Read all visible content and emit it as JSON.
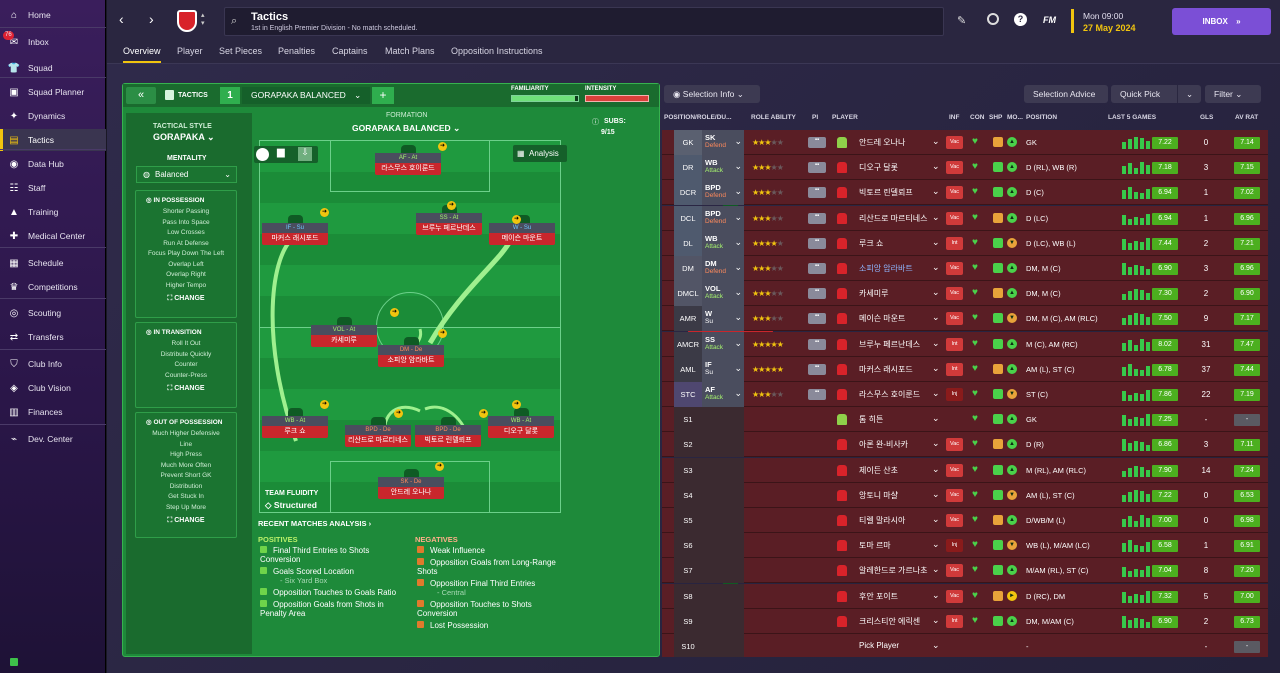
{
  "sidebar": {
    "items": [
      {
        "label": "Home",
        "icon": "home-icon",
        "glyph": "⌂"
      },
      {
        "label": "Inbox",
        "icon": "inbox-icon",
        "glyph": "✉",
        "badge": "76"
      },
      {
        "label": "Squad",
        "icon": "shirt-icon",
        "glyph": "👕"
      },
      {
        "label": "Squad Planner",
        "icon": "planner-icon",
        "glyph": "▣"
      },
      {
        "label": "Dynamics",
        "icon": "dynamics-icon",
        "glyph": "✦"
      },
      {
        "label": "Tactics",
        "icon": "tactics-board-icon",
        "glyph": "▤"
      },
      {
        "label": "Data Hub",
        "icon": "data-hub-icon",
        "glyph": "◉"
      },
      {
        "label": "Staff",
        "icon": "staff-icon",
        "glyph": "☷"
      },
      {
        "label": "Training",
        "icon": "training-icon",
        "glyph": "▲"
      },
      {
        "label": "Medical Center",
        "icon": "medical-icon",
        "glyph": "✚"
      },
      {
        "label": "Schedule",
        "icon": "calendar-icon",
        "glyph": "▦"
      },
      {
        "label": "Competitions",
        "icon": "trophy-icon",
        "glyph": "♛"
      },
      {
        "label": "Scouting",
        "icon": "scouting-icon",
        "glyph": "◎"
      },
      {
        "label": "Transfers",
        "icon": "transfers-icon",
        "glyph": "⇄"
      },
      {
        "label": "Club Info",
        "icon": "shield-icon",
        "glyph": "⛉"
      },
      {
        "label": "Club Vision",
        "icon": "vision-icon",
        "glyph": "◈"
      },
      {
        "label": "Finances",
        "icon": "finances-icon",
        "glyph": "▥"
      },
      {
        "label": "Dev. Center",
        "icon": "dev-center-icon",
        "glyph": "⌁"
      }
    ]
  },
  "topbar": {
    "title": "Tactics",
    "subtitle": "1st in English Premier Division - No match scheduled.",
    "fm": "FM",
    "date_day": "Mon 09:00",
    "date": "27 May 2024",
    "inbox": "INBOX"
  },
  "tabs": [
    "Overview",
    "Player",
    "Set Pieces",
    "Penalties",
    "Captains",
    "Match Plans",
    "Opposition Instructions"
  ],
  "tactics": {
    "label": "TACTICS",
    "slot": "1",
    "name": "GORAPAKA BALANCED",
    "familiarity": "FAMILIARITY",
    "intensity": "INTENSITY",
    "style_label": "TACTICAL STYLE",
    "style": "GORAPAKA",
    "mentality_label": "MENTALITY",
    "mentality": "Balanced",
    "formation_label": "FORMATION",
    "formation": "GORAPAKA BALANCED",
    "subs_label": "SUBS:",
    "subs": "9/15",
    "analysis": "Analysis",
    "team_fluidity_label": "TEAM FLUIDITY",
    "team_fluidity": "Structured",
    "recent": "RECENT MATCHES ANALYSIS ›",
    "in_possession": {
      "title": "IN POSSESSION",
      "lines": [
        "Shorter Passing",
        "Pass Into Space",
        "Low Crosses",
        "Run At Defense",
        "Focus Play Down The Left",
        "Overlap Left",
        "Overlap Right",
        "Higher Tempo"
      ]
    },
    "in_transition": {
      "title": "IN TRANSITION",
      "lines": [
        "Roll It Out",
        "Distribute Quickly",
        "Counter",
        "Counter-Press"
      ]
    },
    "out_of_possession": {
      "title": "OUT OF POSSESSION",
      "lines": [
        "Much Higher Defensive",
        "Line",
        "High Press",
        "Much More Often",
        "Prevent Short GK",
        "Distribution",
        "Get Stuck In",
        "Step Up More"
      ]
    },
    "change": "CHANGE"
  },
  "pitch_players": [
    {
      "role": "AF - At",
      "name": "라스무스 호이룬드"
    },
    {
      "role": "IF - Su",
      "name": "마커스 래시포드"
    },
    {
      "role": "SS - At",
      "name": "브루누 페르난데스"
    },
    {
      "role": "W - Su",
      "name": "메이슨 마운트"
    },
    {
      "role": "VOL - At",
      "name": "카세미루"
    },
    {
      "role": "DM - De",
      "name": "소피앙 암라바트"
    },
    {
      "role": "WB - At",
      "name": "루크 쇼"
    },
    {
      "role": "BPD - De",
      "name": "리산드로 마르티네스"
    },
    {
      "role": "BPD - De",
      "name": "빅토르 린델뢰프"
    },
    {
      "role": "WB - At",
      "name": "디오구 달롯"
    },
    {
      "role": "SK - De",
      "name": "안드레 오나나"
    }
  ],
  "subs": [
    {
      "name": "톰 히튼",
      "pos": "GK"
    },
    {
      "name": "아론 완-비사카",
      "pos": "D (R)"
    },
    {
      "name": "제이든 산초",
      "pos": "M (RL), AM (RLC)"
    },
    {
      "name": "앙토니 마샬",
      "pos": "AM (L), ST (C)"
    },
    {
      "name": "티렐 말라시아",
      "pos": "D/WB/M (L)"
    },
    {
      "name": "토마 르마",
      "pos": "WB (L), M/AM (LC)"
    },
    {
      "name": "알레한드로 가르나초",
      "pos": "M/AM (RL), ST (C)"
    },
    {
      "name": "후안 포이트",
      "pos": "D (RC), DM"
    },
    {
      "name": "크리스티안 에릭센",
      "pos": "DM, M/AM (C)"
    },
    {
      "name": "Pick Player",
      "pos": ""
    }
  ],
  "positives_label": "POSITIVES",
  "negatives_label": "NEGATIVES",
  "positives": [
    {
      "t": "Final Third Entries to Shots Conversion",
      "s": ""
    },
    {
      "t": "Goals Scored Location",
      "s": "- Six Yard Box"
    },
    {
      "t": "Opposition Touches to Goals Ratio",
      "s": ""
    },
    {
      "t": "Opposition Goals from Shots in Penalty Area",
      "s": ""
    }
  ],
  "negatives": [
    {
      "t": "Weak Influence",
      "s": ""
    },
    {
      "t": "Opposition Goals from Long-Range Shots",
      "s": ""
    },
    {
      "t": "Opposition Final Third Entries",
      "s": "- Central"
    },
    {
      "t": "Opposition Touches to Shots Conversion",
      "s": ""
    },
    {
      "t": "Lost Possession",
      "s": ""
    }
  ],
  "table": {
    "selection_info": "Selection Info",
    "selection_advice": "Selection Advice",
    "quick_pick": "Quick Pick",
    "filter": "Filter",
    "headers": [
      "POSITION/ROLE/DU...",
      "ROLE ABILITY",
      "PI",
      "PLAYER",
      "INF",
      "CON",
      "SHP",
      "MO...",
      "POSITION",
      "LAST 5 GAMES",
      "GLS",
      "AV RAT"
    ],
    "rows": [
      {
        "pos": "GK",
        "role": "SK",
        "duty": "Defend",
        "stars": 2.5,
        "name": "안드레 오나나",
        "inf": "Vac",
        "position": "GK",
        "last5": "7.22",
        "gls": "0",
        "av": "7.14"
      },
      {
        "pos": "DR",
        "role": "WB",
        "duty": "Attack",
        "stars": 3,
        "name": "디오구 달롯",
        "inf": "Vac",
        "position": "D (RL), WB (R)",
        "last5": "7.18",
        "gls": "3",
        "av": "7.15"
      },
      {
        "pos": "DCR",
        "role": "BPD",
        "duty": "Defend",
        "stars": 2.5,
        "name": "빅토르 린델뢰프",
        "inf": "Vac",
        "position": "D (C)",
        "last5": "6.94",
        "gls": "1",
        "av": "7.02"
      },
      {
        "pos": "DCL",
        "role": "BPD",
        "duty": "Defend",
        "stars": 3,
        "name": "리산드로 마르티네스",
        "inf": "Vac",
        "position": "D (LC)",
        "last5": "6.94",
        "gls": "1",
        "av": "6.96"
      },
      {
        "pos": "DL",
        "role": "WB",
        "duty": "Attack",
        "stars": 4,
        "name": "루크 쇼",
        "inf": "Int",
        "position": "D (LC), WB (L)",
        "last5": "7.44",
        "gls": "2",
        "av": "7.21"
      },
      {
        "pos": "DM",
        "role": "DM",
        "duty": "Defend",
        "stars": 2.5,
        "name": "소피앙 암라바트",
        "inf": "Vac",
        "position": "DM, M (C)",
        "last5": "6.90",
        "gls": "3",
        "av": "6.96"
      },
      {
        "pos": "DMCL",
        "role": "VOL",
        "duty": "Attack",
        "stars": 2.5,
        "name": "카세미루",
        "inf": "Vac",
        "position": "DM, M (C)",
        "last5": "7.30",
        "gls": "2",
        "av": "6.90"
      },
      {
        "pos": "AMR",
        "role": "W",
        "duty": "Su",
        "stars": 2.5,
        "name": "메이슨 마운트",
        "inf": "Vac",
        "position": "DM, M (C), AM (RLC)",
        "last5": "7.50",
        "gls": "9",
        "av": "7.17"
      },
      {
        "pos": "AMCR",
        "role": "SS",
        "duty": "Attack",
        "stars": 5,
        "name": "브루누 페르난데스",
        "inf": "Int",
        "position": "M (C), AM (RC)",
        "last5": "8.02",
        "gls": "31",
        "av": "7.47"
      },
      {
        "pos": "AML",
        "role": "IF",
        "duty": "Su",
        "stars": 4.5,
        "name": "마커스 래시포드",
        "inf": "Int",
        "position": "AM (L), ST (C)",
        "last5": "6.78",
        "gls": "37",
        "av": "7.44"
      },
      {
        "pos": "STC",
        "role": "AF",
        "duty": "Attack",
        "stars": 3,
        "name": "라스무스 호이룬드",
        "inf": "Inj",
        "position": "ST (C)",
        "last5": "7.86",
        "gls": "22",
        "av": "7.19"
      },
      {
        "pos": "S1",
        "role": "",
        "duty": "",
        "stars": 0,
        "name": "톰 히튼",
        "inf": "",
        "position": "GK",
        "last5": "7.25",
        "gls": "-",
        "av": "-"
      },
      {
        "pos": "S2",
        "role": "",
        "duty": "",
        "stars": 0,
        "name": "아론 완-비사카",
        "inf": "Vac",
        "position": "D (R)",
        "last5": "6.86",
        "gls": "3",
        "av": "7.11"
      },
      {
        "pos": "S3",
        "role": "",
        "duty": "",
        "stars": 0,
        "name": "제이든 산초",
        "inf": "Vac",
        "position": "M (RL), AM (RLC)",
        "last5": "7.90",
        "gls": "14",
        "av": "7.24"
      },
      {
        "pos": "S4",
        "role": "",
        "duty": "",
        "stars": 0,
        "name": "앙토니 마샬",
        "inf": "Vac",
        "position": "AM (L), ST (C)",
        "last5": "7.22",
        "gls": "0",
        "av": "6.53"
      },
      {
        "pos": "S5",
        "role": "",
        "duty": "",
        "stars": 0,
        "name": "티렐 말라시아",
        "inf": "Vac",
        "position": "D/WB/M (L)",
        "last5": "7.00",
        "gls": "0",
        "av": "6.98"
      },
      {
        "pos": "S6",
        "role": "",
        "duty": "",
        "stars": 0,
        "name": "토마 르마",
        "inf": "Inj",
        "position": "WB (L), M/AM (LC)",
        "last5": "6.58",
        "gls": "1",
        "av": "6.91"
      },
      {
        "pos": "S7",
        "role": "",
        "duty": "",
        "stars": 0,
        "name": "알레한드로 가르나초",
        "inf": "Vac",
        "position": "M/AM (RL), ST (C)",
        "last5": "7.04",
        "gls": "8",
        "av": "7.20"
      },
      {
        "pos": "S8",
        "role": "",
        "duty": "",
        "stars": 0,
        "name": "후안 포이트",
        "inf": "Vac",
        "position": "D (RC), DM",
        "last5": "7.32",
        "gls": "5",
        "av": "7.00"
      },
      {
        "pos": "S9",
        "role": "",
        "duty": "",
        "stars": 0,
        "name": "크리스티안 에릭센",
        "inf": "Int",
        "position": "DM, M/AM (C)",
        "last5": "6.90",
        "gls": "2",
        "av": "6.73"
      },
      {
        "pos": "S10",
        "role": "",
        "duty": "",
        "stars": 0,
        "name": "Pick Player",
        "inf": "",
        "position": "-",
        "last5": "",
        "gls": "-",
        "av": "-"
      }
    ]
  }
}
